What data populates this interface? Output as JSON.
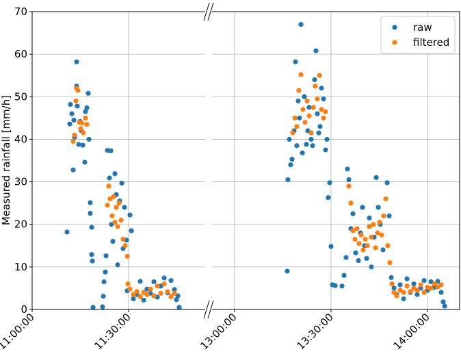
{
  "chart_data": [
    {
      "type": "scatter",
      "ylabel": "Measured rainfall [mm/h]",
      "xlim": [
        "11:00:00",
        "11:53:50"
      ],
      "xticks": [
        "11:00:00",
        "11:30:00"
      ],
      "ylim": [
        0,
        70
      ],
      "yticks": [
        0,
        10,
        20,
        30,
        40,
        50,
        60,
        70
      ],
      "grid": true,
      "series": [
        {
          "color": "#1f77b4",
          "x": [
            "11:10:51",
            "11:11:42",
            "11:11:55",
            "11:12:21",
            "11:12:46",
            "11:12:59",
            "11:13:12",
            "11:13:50",
            "11:13:50",
            "11:14:03",
            "11:14:28",
            "11:14:54",
            "11:15:19",
            "11:15:45",
            "11:16:23",
            "11:16:36",
            "11:17:02",
            "11:17:40",
            "11:17:27",
            "11:18:05",
            "11:18:05",
            "11:18:31",
            "11:18:31",
            "11:18:44",
            "11:18:57",
            "11:21:55",
            "11:22:08",
            "11:22:21",
            "11:22:46",
            "11:22:59",
            "11:23:25",
            "11:24:03",
            "11:24:29",
            "11:24:41",
            "11:25:07",
            "11:25:45",
            "11:26:11",
            "11:26:36",
            "11:27:14",
            "11:27:53",
            "11:28:18",
            "11:28:44",
            "11:29:22",
            "11:29:35",
            "11:30:26",
            "11:30:52",
            "11:31:30",
            "11:32:34",
            "11:33:38",
            "11:34:42",
            "11:35:45",
            "11:36:49",
            "11:37:53",
            "11:38:57",
            "11:40:01",
            "11:41:05",
            "11:42:08",
            "11:43:12",
            "11:44:16",
            "11:44:54",
            "11:45:20",
            "11:45:45"
          ],
          "values": [
            18.2,
            43.6,
            48.2,
            46.0,
            32.8,
            44.5,
            40.5,
            58.2,
            52.5,
            47.8,
            38.8,
            44.2,
            42.0,
            38.6,
            34.6,
            46.5,
            47.4,
            40.0,
            50.8,
            25.1,
            22.6,
            19.3,
            12.9,
            11.4,
            0.5,
            0.6,
            3.1,
            6.5,
            8.8,
            12.6,
            37.4,
            30.9,
            37.3,
            20.0,
            16.0,
            31.9,
            27.0,
            10.5,
            25.5,
            29.7,
            14.3,
            24.0,
            16.3,
            4.4,
            22.2,
            18.5,
            2.5,
            3.5,
            6.6,
            2.2,
            4.8,
            3.8,
            6.5,
            2.9,
            5.5,
            7.4,
            3.9,
            6.8,
            4.7,
            2.3,
            3.2,
            0.5
          ]
        },
        {
          "color": "#ff7f0e",
          "x": [
            "11:12:46",
            "11:13:12",
            "11:13:37",
            "11:13:50",
            "11:14:15",
            "11:14:41",
            "11:15:06",
            "11:15:32",
            "11:15:57",
            "11:16:36",
            "11:17:02",
            "11:23:25",
            "11:23:50",
            "11:24:16",
            "11:24:54",
            "11:25:20",
            "11:25:45",
            "11:26:11",
            "11:26:36",
            "11:27:02",
            "11:27:40",
            "11:28:18",
            "11:28:57",
            "11:29:35",
            "11:29:48",
            "11:30:26",
            "11:31:30",
            "11:32:34",
            "11:33:38",
            "11:34:42",
            "11:35:45",
            "11:36:49",
            "11:37:53",
            "11:38:57",
            "11:40:01",
            "11:41:05",
            "11:42:08",
            "11:43:12",
            "11:44:16"
          ],
          "values": [
            39.5,
            41.0,
            49.0,
            52.0,
            51.5,
            44.0,
            42.5,
            43.8,
            41.5,
            45.0,
            43.5,
            24.5,
            29.0,
            26.0,
            22.0,
            26.5,
            20.5,
            24.0,
            19.5,
            25.0,
            21.0,
            16.5,
            15.0,
            12.5,
            6.0,
            4.8,
            3.5,
            4.2,
            3.0,
            4.0,
            3.5,
            4.8,
            3.2,
            5.5,
            3.8,
            6.0,
            4.2,
            3.0,
            3.8
          ]
        }
      ]
    },
    {
      "type": "scatter",
      "xlim": [
        "12:53:00",
        "14:10:00"
      ],
      "xticks": [
        "13:00:00",
        "13:30:00",
        "14:00:00"
      ],
      "ylim": [
        0,
        70
      ],
      "yticks": [
        0,
        10,
        20,
        30,
        40,
        50,
        60,
        70
      ],
      "grid": true,
      "legend": "upper right",
      "series": [
        {
          "name": "raw",
          "color": "#1f77b4",
          "x": [
            "13:16:23",
            "13:16:36",
            "13:17:02",
            "13:17:27",
            "13:17:53",
            "13:18:31",
            "13:18:57",
            "13:19:22",
            "13:19:48",
            "13:20:13",
            "13:20:39",
            "13:21:05",
            "13:21:43",
            "13:22:21",
            "13:22:46",
            "13:23:12",
            "13:23:50",
            "13:24:16",
            "13:24:54",
            "13:25:20",
            "13:25:45",
            "13:26:11",
            "13:26:36",
            "13:27:02",
            "13:27:40",
            "13:28:18",
            "13:28:44",
            "13:29:09",
            "13:29:35",
            "13:30:00",
            "13:30:26",
            "13:31:17",
            "13:33:25",
            "13:34:03",
            "13:34:41",
            "13:35:07",
            "13:35:33",
            "13:36:11",
            "13:36:49",
            "13:37:40",
            "13:38:31",
            "13:39:10",
            "13:39:48",
            "13:40:26",
            "13:41:05",
            "13:41:56",
            "13:42:34",
            "13:43:25",
            "13:44:03",
            "13:44:42",
            "13:45:20",
            "13:46:11",
            "13:47:28",
            "13:48:06",
            "13:48:44",
            "13:49:35",
            "13:50:26",
            "13:51:30",
            "13:52:34",
            "13:53:38",
            "13:54:41",
            "13:55:45",
            "13:56:49",
            "13:57:53",
            "13:58:57",
            "14:00:00",
            "14:01:05",
            "14:02:08",
            "14:03:12",
            "14:04:16",
            "14:04:54",
            "14:05:20"
          ],
          "values": [
            9.0,
            30.5,
            40.0,
            34.0,
            35.3,
            42.0,
            58.2,
            38.5,
            49.0,
            45.0,
            67.0,
            36.8,
            50.0,
            38.8,
            42.0,
            47.5,
            40.0,
            38.5,
            54.0,
            60.8,
            46.0,
            41.5,
            43.0,
            52.0,
            49.5,
            37.5,
            40.0,
            26.3,
            29.8,
            14.8,
            5.8,
            5.6,
            5.5,
            8.0,
            12.2,
            33.0,
            30.5,
            19.0,
            22.5,
            13.3,
            11.5,
            18.0,
            24.0,
            15.0,
            12.0,
            21.5,
            10.0,
            17.0,
            31.0,
            24.0,
            20.0,
            14.0,
            29.8,
            22.0,
            7.5,
            5.0,
            3.5,
            5.8,
            2.5,
            7.2,
            4.0,
            6.0,
            3.5,
            5.0,
            6.8,
            4.5,
            6.5,
            5.2,
            6.6,
            4.0,
            1.8,
            0.8
          ]
        },
        {
          "name": "filtered",
          "color": "#ff7f0e",
          "x": [
            "13:18:05",
            "13:18:44",
            "13:19:22",
            "13:20:00",
            "13:20:39",
            "13:21:17",
            "13:21:55",
            "13:22:34",
            "13:23:12",
            "13:23:50",
            "13:24:29",
            "13:25:07",
            "13:25:45",
            "13:26:24",
            "13:27:02",
            "13:27:40",
            "13:28:18",
            "13:35:33",
            "13:36:11",
            "13:36:49",
            "13:37:27",
            "13:38:05",
            "13:38:44",
            "13:39:22",
            "13:40:00",
            "13:40:39",
            "13:41:17",
            "13:41:56",
            "13:42:34",
            "13:43:12",
            "13:43:51",
            "13:44:29",
            "13:45:07",
            "13:45:45",
            "13:46:24",
            "13:47:02",
            "13:47:40",
            "13:48:18",
            "13:48:57",
            "13:49:35",
            "13:50:26",
            "13:51:30",
            "13:52:34",
            "13:53:38",
            "13:54:41",
            "13:55:45",
            "13:56:49",
            "13:57:53",
            "13:58:57",
            "14:00:01",
            "14:01:05",
            "14:02:08",
            "14:03:12",
            "14:04:16"
          ],
          "values": [
            41.5,
            45.0,
            43.0,
            51.5,
            55.2,
            47.0,
            44.0,
            49.0,
            45.5,
            41.5,
            47.5,
            52.5,
            49.5,
            55.0,
            47.0,
            45.0,
            46.5,
            29.0,
            25.0,
            18.5,
            16.5,
            19.0,
            15.5,
            17.5,
            14.0,
            16.5,
            15.0,
            19.5,
            17.0,
            20.0,
            14.5,
            18.0,
            20.5,
            17.5,
            22.0,
            26.0,
            15.0,
            11.0,
            6.0,
            4.0,
            3.2,
            4.5,
            4.0,
            5.5,
            4.2,
            5.0,
            4.5,
            5.8,
            4.0,
            5.2,
            5.0,
            6.0,
            5.3,
            5.8
          ]
        }
      ]
    }
  ]
}
